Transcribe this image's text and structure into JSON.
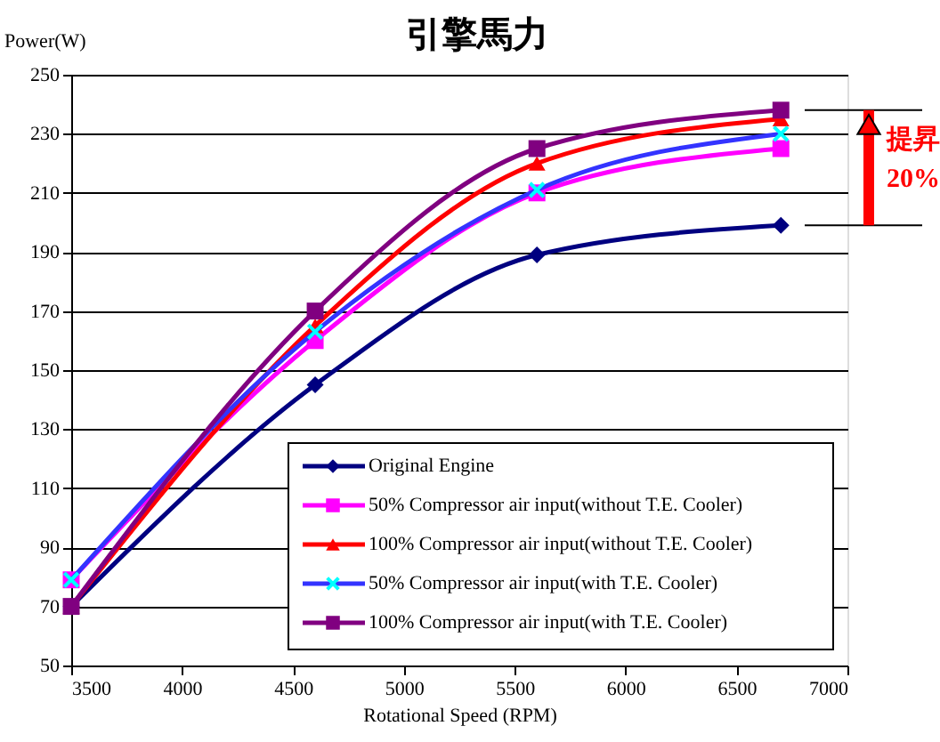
{
  "chart_data": {
    "type": "line",
    "title": "引擎馬力",
    "xlabel": "Rotational Speed (RPM)",
    "ylabel": "Power(W)",
    "x": [
      3500,
      4600,
      5600,
      6700
    ],
    "series": [
      {
        "name": "Original Engine",
        "color": "#000080",
        "marker": "diamond",
        "values": [
          70,
          145,
          189,
          199
        ]
      },
      {
        "name": "50% Compressor air input(without T.E. Cooler)",
        "color": "#ff00ff",
        "marker": "square",
        "values": [
          79,
          160,
          210,
          225
        ]
      },
      {
        "name": "100% Compressor air input(without T.E. Cooler)",
        "color": "#ff0000",
        "marker": "triangle",
        "values": [
          70,
          165,
          220,
          235
        ]
      },
      {
        "name": "50% Compressor air input(with T.E. Cooler)",
        "color": "#3333ff",
        "marker": "cross",
        "values": [
          79,
          163,
          211,
          230
        ]
      },
      {
        "name": "100% Compressor air input(with T.E. Cooler)",
        "color": "#800080",
        "marker": "square",
        "values": [
          70,
          170,
          225,
          238
        ]
      }
    ],
    "xlim": [
      3500,
      7000
    ],
    "xticks": [
      3500,
      4000,
      4500,
      5000,
      5500,
      6000,
      6500,
      7000
    ],
    "ylim": [
      50,
      250
    ],
    "yticks": [
      50,
      70,
      90,
      110,
      130,
      150,
      170,
      190,
      210,
      230,
      250
    ],
    "grid": "y",
    "legend": "bottom right",
    "line_style": "solid",
    "annotations": [
      "提昇",
      "20%"
    ]
  }
}
